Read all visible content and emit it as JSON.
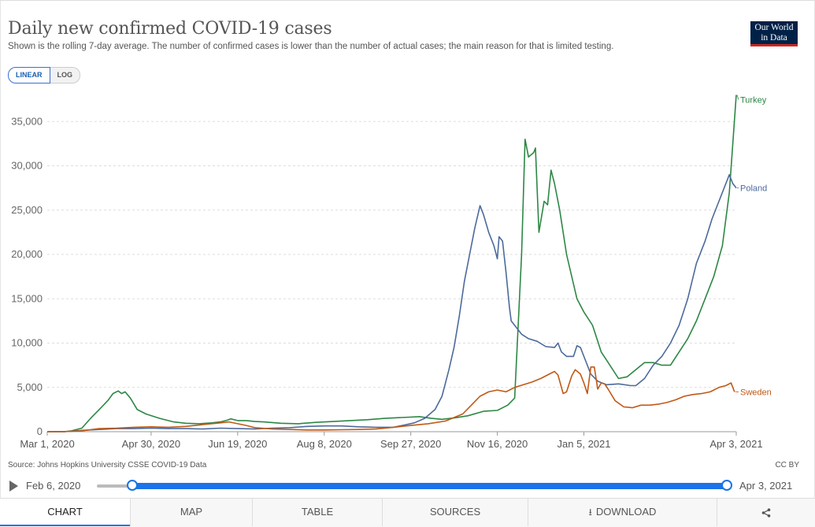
{
  "header": {
    "title": "Daily new confirmed COVID-19 cases",
    "subtitle": "Shown is the rolling 7-day average. The number of confirmed cases is lower than the number of actual cases; the main reason for that is limited testing.",
    "logo_line1": "Our World",
    "logo_line2": "in Data"
  },
  "scale_toggle": {
    "linear": "LINEAR",
    "log": "LOG",
    "selected": "LINEAR"
  },
  "chart_data": {
    "type": "line",
    "title": "Daily new confirmed COVID-19 cases",
    "x_tick_labels": [
      "Mar 1, 2020",
      "Apr 30, 2020",
      "Jun 19, 2020",
      "Aug 8, 2020",
      "Sep 27, 2020",
      "Nov 16, 2020",
      "Jan 5, 2021",
      "Apr 3, 2021"
    ],
    "x_tick_days": [
      0,
      60,
      110,
      160,
      210,
      260,
      310,
      398
    ],
    "y_tick_labels": [
      "0",
      "5,000",
      "10,000",
      "15,000",
      "20,000",
      "25,000",
      "30,000",
      "35,000"
    ],
    "y_tick_values": [
      0,
      5000,
      10000,
      15000,
      20000,
      25000,
      30000,
      35000
    ],
    "xlim_days": [
      0,
      398
    ],
    "ylim": [
      0,
      40000
    ],
    "x_start_date": "2020-03-01",
    "grid": "horizontal",
    "legend": "line-end labels",
    "series": [
      {
        "name": "Turkey",
        "color": "#2d8745",
        "points": [
          [
            0,
            0
          ],
          [
            10,
            0
          ],
          [
            14,
            100
          ],
          [
            20,
            400
          ],
          [
            25,
            1500
          ],
          [
            30,
            2500
          ],
          [
            35,
            3500
          ],
          [
            38,
            4300
          ],
          [
            41,
            4600
          ],
          [
            43,
            4300
          ],
          [
            45,
            4500
          ],
          [
            48,
            3800
          ],
          [
            52,
            2500
          ],
          [
            57,
            2000
          ],
          [
            65,
            1500
          ],
          [
            73,
            1100
          ],
          [
            80,
            950
          ],
          [
            88,
            900
          ],
          [
            95,
            1000
          ],
          [
            100,
            1100
          ],
          [
            104,
            1300
          ],
          [
            106,
            1450
          ],
          [
            110,
            1250
          ],
          [
            115,
            1250
          ],
          [
            120,
            1150
          ],
          [
            125,
            1100
          ],
          [
            135,
            950
          ],
          [
            145,
            900
          ],
          [
            155,
            1050
          ],
          [
            165,
            1150
          ],
          [
            175,
            1250
          ],
          [
            185,
            1350
          ],
          [
            195,
            1500
          ],
          [
            205,
            1600
          ],
          [
            215,
            1700
          ],
          [
            222,
            1500
          ],
          [
            228,
            1400
          ],
          [
            235,
            1550
          ],
          [
            243,
            1800
          ],
          [
            252,
            2300
          ],
          [
            260,
            2400
          ],
          [
            266,
            3000
          ],
          [
            270,
            3800
          ],
          [
            274,
            20000
          ],
          [
            276,
            33000
          ],
          [
            278,
            31000
          ],
          [
            281,
            31500
          ],
          [
            282,
            32000
          ],
          [
            284,
            22500
          ],
          [
            287,
            26000
          ],
          [
            289,
            25600
          ],
          [
            291,
            29500
          ],
          [
            293,
            28000
          ],
          [
            296,
            25000
          ],
          [
            300,
            20000
          ],
          [
            306,
            15000
          ],
          [
            310,
            13500
          ],
          [
            315,
            12000
          ],
          [
            320,
            9000
          ],
          [
            325,
            7500
          ],
          [
            330,
            6000
          ],
          [
            335,
            6200
          ],
          [
            340,
            7000
          ],
          [
            345,
            7800
          ],
          [
            350,
            7800
          ],
          [
            355,
            7500
          ],
          [
            360,
            7500
          ],
          [
            365,
            9000
          ],
          [
            370,
            10500
          ],
          [
            375,
            12500
          ],
          [
            380,
            15000
          ],
          [
            385,
            17500
          ],
          [
            390,
            21000
          ],
          [
            394,
            27000
          ],
          [
            398,
            38000
          ]
        ]
      },
      {
        "name": "Poland",
        "color": "#4c6a9c",
        "points": [
          [
            0,
            0
          ],
          [
            10,
            0
          ],
          [
            20,
            150
          ],
          [
            30,
            250
          ],
          [
            40,
            350
          ],
          [
            50,
            350
          ],
          [
            60,
            400
          ],
          [
            70,
            350
          ],
          [
            80,
            350
          ],
          [
            90,
            300
          ],
          [
            100,
            400
          ],
          [
            110,
            350
          ],
          [
            120,
            300
          ],
          [
            130,
            400
          ],
          [
            140,
            450
          ],
          [
            150,
            600
          ],
          [
            160,
            650
          ],
          [
            170,
            650
          ],
          [
            180,
            550
          ],
          [
            190,
            500
          ],
          [
            200,
            500
          ],
          [
            205,
            700
          ],
          [
            212,
            1000
          ],
          [
            218,
            1500
          ],
          [
            224,
            2500
          ],
          [
            228,
            4000
          ],
          [
            232,
            7000
          ],
          [
            235,
            9500
          ],
          [
            238,
            13000
          ],
          [
            241,
            17000
          ],
          [
            244,
            20000
          ],
          [
            247,
            23000
          ],
          [
            250,
            25500
          ],
          [
            252,
            24500
          ],
          [
            255,
            22500
          ],
          [
            258,
            21000
          ],
          [
            260,
            19500
          ],
          [
            261,
            22000
          ],
          [
            263,
            21500
          ],
          [
            265,
            18000
          ],
          [
            267,
            14000
          ],
          [
            268,
            12500
          ],
          [
            270,
            12000
          ],
          [
            274,
            11000
          ],
          [
            278,
            10500
          ],
          [
            283,
            10200
          ],
          [
            288,
            9600
          ],
          [
            293,
            9500
          ],
          [
            295,
            10000
          ],
          [
            297,
            9000
          ],
          [
            300,
            8500
          ],
          [
            304,
            8500
          ],
          [
            306,
            9700
          ],
          [
            308,
            9500
          ],
          [
            311,
            8000
          ],
          [
            314,
            6500
          ],
          [
            318,
            5700
          ],
          [
            323,
            5300
          ],
          [
            330,
            5400
          ],
          [
            337,
            5200
          ],
          [
            340,
            5200
          ],
          [
            345,
            6000
          ],
          [
            350,
            7500
          ],
          [
            355,
            8500
          ],
          [
            360,
            10000
          ],
          [
            365,
            12000
          ],
          [
            370,
            15000
          ],
          [
            375,
            19000
          ],
          [
            380,
            21500
          ],
          [
            384,
            24000
          ],
          [
            388,
            26000
          ],
          [
            392,
            28000
          ],
          [
            394,
            29000
          ],
          [
            396,
            28000
          ],
          [
            398,
            27500
          ]
        ]
      },
      {
        "name": "Sweden",
        "color": "#c05917",
        "points": [
          [
            0,
            0
          ],
          [
            10,
            20
          ],
          [
            20,
            100
          ],
          [
            30,
            350
          ],
          [
            40,
            400
          ],
          [
            50,
            500
          ],
          [
            60,
            550
          ],
          [
            70,
            500
          ],
          [
            80,
            600
          ],
          [
            90,
            800
          ],
          [
            100,
            1000
          ],
          [
            105,
            1100
          ],
          [
            110,
            900
          ],
          [
            115,
            700
          ],
          [
            120,
            450
          ],
          [
            130,
            300
          ],
          [
            140,
            250
          ],
          [
            150,
            200
          ],
          [
            160,
            200
          ],
          [
            170,
            220
          ],
          [
            180,
            250
          ],
          [
            190,
            300
          ],
          [
            200,
            500
          ],
          [
            210,
            700
          ],
          [
            220,
            900
          ],
          [
            230,
            1200
          ],
          [
            240,
            2000
          ],
          [
            245,
            3000
          ],
          [
            250,
            4000
          ],
          [
            255,
            4500
          ],
          [
            260,
            4700
          ],
          [
            265,
            4500
          ],
          [
            270,
            5000
          ],
          [
            275,
            5300
          ],
          [
            280,
            5600
          ],
          [
            285,
            6000
          ],
          [
            290,
            6500
          ],
          [
            293,
            6800
          ],
          [
            295,
            6400
          ],
          [
            298,
            4300
          ],
          [
            300,
            4500
          ],
          [
            303,
            6300
          ],
          [
            305,
            7000
          ],
          [
            308,
            6500
          ],
          [
            310,
            5500
          ],
          [
            312,
            4300
          ],
          [
            314,
            7300
          ],
          [
            316,
            7300
          ],
          [
            318,
            4800
          ],
          [
            320,
            5500
          ],
          [
            322,
            5400
          ],
          [
            324,
            4800
          ],
          [
            328,
            3500
          ],
          [
            333,
            2800
          ],
          [
            338,
            2700
          ],
          [
            343,
            3000
          ],
          [
            348,
            3000
          ],
          [
            353,
            3100
          ],
          [
            358,
            3300
          ],
          [
            363,
            3600
          ],
          [
            368,
            4000
          ],
          [
            373,
            4200
          ],
          [
            378,
            4300
          ],
          [
            383,
            4500
          ],
          [
            388,
            5000
          ],
          [
            392,
            5200
          ],
          [
            395,
            5500
          ],
          [
            397,
            4500
          ]
        ]
      }
    ]
  },
  "footer": {
    "source": "Source: Johns Hopkins University CSSE COVID-19 Data",
    "license": "CC BY"
  },
  "timeline": {
    "start_label": "Feb 6, 2020",
    "end_label": "Apr 3, 2021",
    "range_start_fraction": 0.056,
    "range_end_fraction": 1.0
  },
  "tabs": [
    {
      "label": "CHART",
      "active": true
    },
    {
      "label": "MAP",
      "active": false
    },
    {
      "label": "TABLE",
      "active": false
    },
    {
      "label": "SOURCES",
      "active": false
    },
    {
      "label": "DOWNLOAD",
      "active": false
    }
  ],
  "icons": {
    "play": "play-icon",
    "download": "download-icon",
    "share": "share-icon"
  }
}
